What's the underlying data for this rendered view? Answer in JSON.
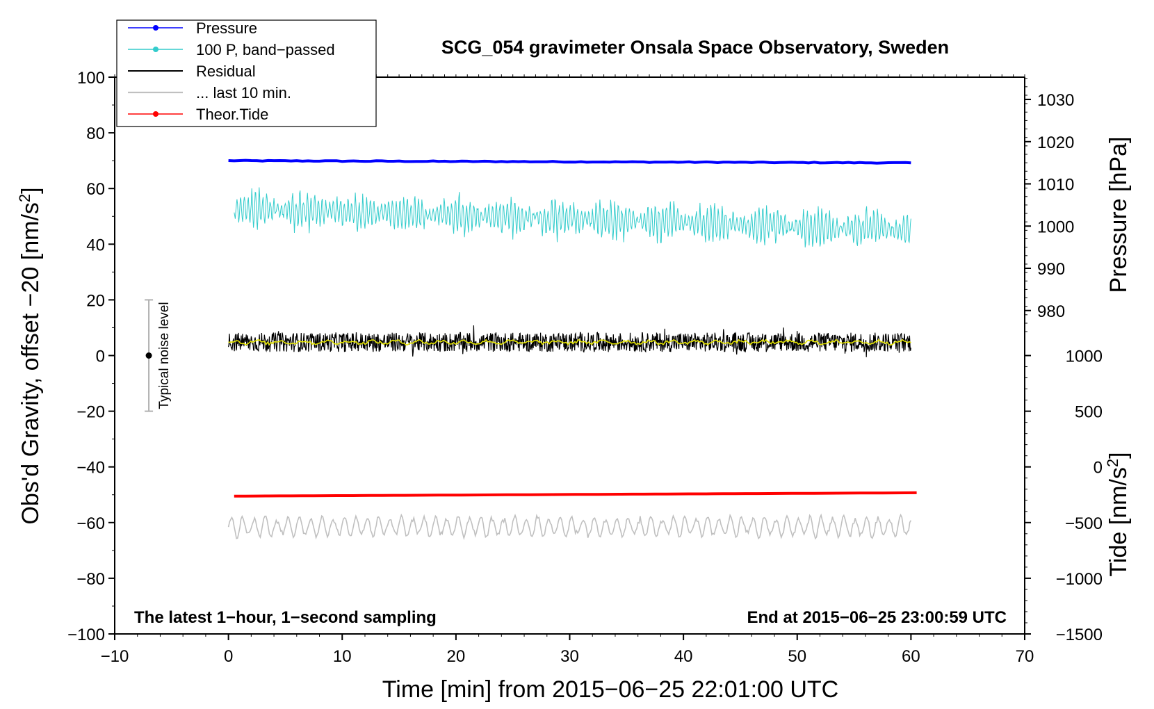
{
  "chart_data": {
    "type": "line",
    "title": "SCG_054 gravimeter Onsala Space Observatory, Sweden",
    "xlabel": "Time [min] from 2015−06−25 22:01:00 UTC",
    "ylabel_left": "Obs'd Gravity, offset −20 [nm/s",
    "ylabel_left_sup": "2",
    "ylabel_left_end": "]",
    "ylabel_pressure": "Pressure [hPa]",
    "ylabel_tide": "Tide [nm/s",
    "ylabel_tide_sup": "2",
    "ylabel_tide_end": "]",
    "note_left": "The latest 1−hour, 1−second sampling",
    "note_right": "End at 2015−06−25 23:00:59 UTC",
    "noise_label": "Typical noise level",
    "xlim": [
      -10,
      70
    ],
    "ylim": [
      -100,
      100
    ],
    "x_ticks": [
      -10,
      0,
      10,
      20,
      30,
      40,
      50,
      60,
      70
    ],
    "x_tick_labels": [
      "−10",
      "0",
      "10",
      "20",
      "30",
      "40",
      "50",
      "60",
      "70"
    ],
    "y_ticks": [
      -100,
      -80,
      -60,
      -40,
      -20,
      0,
      20,
      40,
      60,
      80,
      100
    ],
    "y_tick_labels": [
      "−100",
      "−80",
      "−60",
      "−40",
      "−20",
      "0",
      "20",
      "40",
      "60",
      "80",
      "100"
    ],
    "pressure_axis": {
      "ticks": [
        980,
        990,
        1000,
        1010,
        1020,
        1030
      ],
      "tick_labels": [
        "980",
        "990",
        "1000",
        "1010",
        "1020",
        "1030"
      ],
      "map": {
        "value_a": 1000,
        "gravity_a": 46.5,
        "value_b": 1030,
        "gravity_b": 92
      }
    },
    "tide_axis": {
      "ticks": [
        -1500,
        -1000,
        -500,
        0,
        500,
        1000
      ],
      "tick_labels": [
        "−1500",
        "−1000",
        "−500",
        "0",
        "500",
        "1000"
      ],
      "map": {
        "value_a": -1500,
        "gravity_a": -100,
        "value_b": 1000,
        "gravity_b": 0
      }
    },
    "noise_bar": {
      "x": -7,
      "y_center": 0,
      "y_low": -20,
      "y_high": 20
    },
    "series": [
      {
        "name": "Pressure",
        "key": "pressure",
        "color": "#0000ff",
        "x_start": 0,
        "x_end": 60,
        "level_start": 70,
        "level_end": 69.2,
        "amplitude": 0.3
      },
      {
        "name": "100 P, band−passed",
        "key": "bandpassed",
        "color": "#33cccc",
        "x_start": 0.5,
        "x_end": 60,
        "level_start": 53,
        "level_end": 45,
        "amplitude": 7
      },
      {
        "name": "Residual",
        "key": "residual",
        "color": "#000000",
        "x_start": 0,
        "x_end": 60,
        "level_start": 4.8,
        "level_end": 4.8,
        "amplitude": 3.5
      },
      {
        "name": "... last 10 min.",
        "key": "last10",
        "color": "#c0c0c0",
        "x_start": 0,
        "x_end": 60,
        "level_start": -61.5,
        "level_end": -61.5,
        "amplitude": 3
      },
      {
        "name": "Theor.Tide",
        "key": "tide",
        "color": "#ff0000",
        "x_start": 0.5,
        "x_end": 60.5,
        "level_start": -50.5,
        "level_end": -49.3,
        "amplitude": 0
      }
    ],
    "smoothed_residual": {
      "color": "#e6e600",
      "level": 4.8,
      "amplitude": 1
    }
  }
}
